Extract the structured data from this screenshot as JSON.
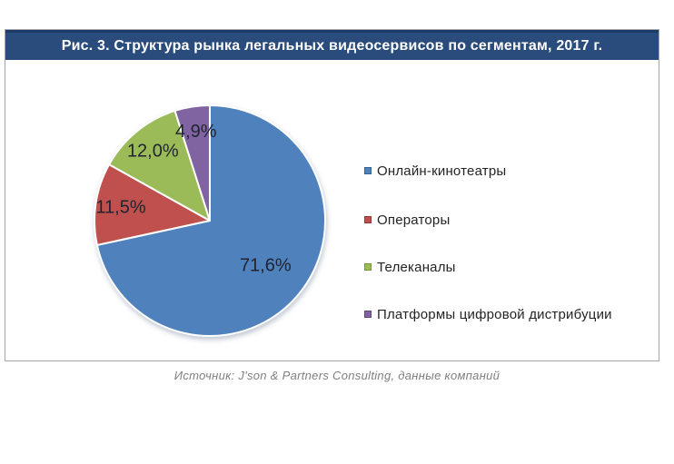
{
  "figure": {
    "title": "Рис. 3. Структура рынка легальных видеосервисов по сегментам, 2017 г.",
    "title_bar_color": "#2a4c7c",
    "title_bar_edge_color": "#1c3a66",
    "title_text_color": "#ffffff",
    "frame_border_color": "#a6a6a6"
  },
  "footer": {
    "source": "Источник: J'son & Partners Consulting, данные компаний"
  },
  "chart_data": {
    "type": "pie",
    "title": "Структура рынка легальных видеосервисов по сегментам, 2017 г.",
    "units": "percent",
    "direction": "clockwise",
    "start_angle_deg": 0,
    "legend_position": "right",
    "separator_color": "#ffffff",
    "label_color": "#1f2430",
    "slices": [
      {
        "label": "Онлайн-кинотеатры",
        "value": 71.6,
        "display": "71,6%",
        "color": "#4f81bd",
        "border_color": "#3a6194"
      },
      {
        "label": "Операторы",
        "value": 11.5,
        "display": "11,5%",
        "color": "#c0504d",
        "border_color": "#943634"
      },
      {
        "label": "Телеканалы",
        "value": 12.0,
        "display": "12,0%",
        "color": "#9bbb59",
        "border_color": "#77933c"
      },
      {
        "label": "Платформы цифровой дистрибуции",
        "value": 4.9,
        "display": "4,9%",
        "color": "#8064a2",
        "border_color": "#60497a"
      }
    ]
  }
}
